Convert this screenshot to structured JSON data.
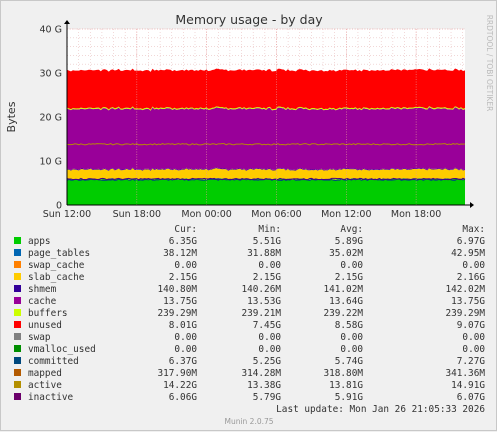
{
  "chart_data": {
    "type": "area",
    "title": "Memory usage - by day",
    "ylabel": "Bytes",
    "side_label": "RRDTOOL / TOBI OETIKER",
    "yticks": [
      "0",
      "10 G",
      "20 G",
      "30 G",
      "40 G"
    ],
    "ylim": [
      0,
      40
    ],
    "y_unit": "G",
    "xticks": [
      "Sun 12:00",
      "Sun 18:00",
      "Mon 00:00",
      "Mon 06:00",
      "Mon 12:00",
      "Mon 18:00"
    ],
    "grid": true,
    "stack": [
      {
        "name": "apps",
        "color": "#00cc00",
        "value": 5.89,
        "jitter": 0.4
      },
      {
        "name": "page_tables",
        "color": "#0066b3",
        "value": 0.035,
        "jitter": 0.0
      },
      {
        "name": "swap_cache",
        "color": "#ff8000",
        "value": 0.0,
        "jitter": 0.0
      },
      {
        "name": "slab_cache",
        "color": "#ffcc00",
        "value": 2.15,
        "jitter": 0.25
      },
      {
        "name": "shmem",
        "color": "#330099",
        "value": 0.141,
        "jitter": 0.0
      },
      {
        "name": "cache",
        "color": "#990099",
        "value": 13.64,
        "jitter": 0.25
      },
      {
        "name": "buffers",
        "color": "#ccff00",
        "value": 0.239,
        "jitter": 0.0
      },
      {
        "name": "unused",
        "color": "#ff0000",
        "value": 8.58,
        "jitter": 0.0
      }
    ],
    "lines": [
      {
        "name": "committed",
        "color": "#00487d",
        "value": 5.74,
        "jitter": 0.35
      },
      {
        "name": "active",
        "color": "#b8860b",
        "value": 13.81,
        "jitter": 0.3
      },
      {
        "name": "inactive",
        "color": "#4b0082",
        "value": 5.91,
        "jitter": 0.3
      }
    ],
    "legend_headers": [
      "Cur:",
      "Min:",
      "Avg:",
      "Max:"
    ],
    "legend": [
      {
        "name": "apps",
        "color": "#00cc00",
        "cur": "6.35G",
        "min": "5.51G",
        "avg": "5.89G",
        "max": "6.97G"
      },
      {
        "name": "page_tables",
        "color": "#0066b3",
        "cur": "38.12M",
        "min": "31.88M",
        "avg": "35.02M",
        "max": "42.95M"
      },
      {
        "name": "swap_cache",
        "color": "#ff8000",
        "cur": "0.00",
        "min": "0.00",
        "avg": "0.00",
        "max": "0.00"
      },
      {
        "name": "slab_cache",
        "color": "#ffcc00",
        "cur": "2.15G",
        "min": "2.15G",
        "avg": "2.15G",
        "max": "2.16G"
      },
      {
        "name": "shmem",
        "color": "#330099",
        "cur": "140.80M",
        "min": "140.26M",
        "avg": "141.02M",
        "max": "142.02M"
      },
      {
        "name": "cache",
        "color": "#990099",
        "cur": "13.75G",
        "min": "13.53G",
        "avg": "13.64G",
        "max": "13.75G"
      },
      {
        "name": "buffers",
        "color": "#ccff00",
        "cur": "239.29M",
        "min": "239.21M",
        "avg": "239.22M",
        "max": "239.29M"
      },
      {
        "name": "unused",
        "color": "#ff0000",
        "cur": "8.01G",
        "min": "7.45G",
        "avg": "8.58G",
        "max": "9.07G"
      },
      {
        "name": "swap",
        "color": "#808080",
        "cur": "0.00",
        "min": "0.00",
        "avg": "0.00",
        "max": "0.00"
      },
      {
        "name": "vmalloc_used",
        "color": "#008f00",
        "cur": "0.00",
        "min": "0.00",
        "avg": "0.00",
        "max": "0.00"
      },
      {
        "name": "committed",
        "color": "#00487d",
        "cur": "6.37G",
        "min": "5.25G",
        "avg": "5.74G",
        "max": "7.27G"
      },
      {
        "name": "mapped",
        "color": "#b35a00",
        "cur": "317.90M",
        "min": "314.28M",
        "avg": "318.80M",
        "max": "341.36M"
      },
      {
        "name": "active",
        "color": "#b38f00",
        "cur": "14.22G",
        "min": "13.38G",
        "avg": "13.81G",
        "max": "14.91G"
      },
      {
        "name": "inactive",
        "color": "#6b006b",
        "cur": "6.06G",
        "min": "5.79G",
        "avg": "5.91G",
        "max": "6.07G"
      }
    ],
    "last_update": "Last update: Mon Jan 26 21:05:33 2026",
    "footer": "Munin 2.0.75"
  }
}
